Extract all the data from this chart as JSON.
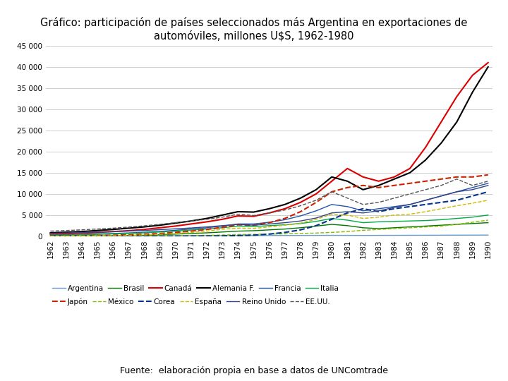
{
  "title": "Gráfico: participación de países seleccionados más Argentina en exportaciones de\nautomóviles, millones U$S, 1962-1980",
  "subtitle": "Fuente:  elaboración propia en base a datos de UNComtrade",
  "years": [
    1962,
    1963,
    1964,
    1965,
    1966,
    1967,
    1968,
    1969,
    1970,
    1971,
    1972,
    1973,
    1974,
    1975,
    1976,
    1977,
    1978,
    1979,
    1980,
    1981,
    1982,
    1983,
    1984,
    1985,
    1986,
    1987,
    1988,
    1989,
    1990
  ],
  "ylim": [
    0,
    45000
  ],
  "yticks": [
    0,
    5000,
    10000,
    15000,
    20000,
    25000,
    30000,
    35000,
    40000,
    45000
  ],
  "series": {
    "Argentina": {
      "color": "#6699CC",
      "linestyle": "-",
      "linewidth": 1.0,
      "values": [
        50,
        60,
        70,
        80,
        90,
        100,
        110,
        120,
        130,
        140,
        150,
        160,
        170,
        160,
        170,
        180,
        190,
        200,
        210,
        200,
        190,
        200,
        210,
        220,
        230,
        240,
        250,
        260,
        270
      ]
    },
    "Brasil": {
      "color": "#007700",
      "linestyle": "-",
      "linewidth": 1.0,
      "values": [
        20,
        30,
        40,
        70,
        100,
        150,
        220,
        350,
        500,
        650,
        800,
        1000,
        1200,
        1300,
        1500,
        1700,
        2000,
        2400,
        2800,
        2500,
        2000,
        1800,
        2000,
        2200,
        2400,
        2600,
        2800,
        3000,
        3200
      ]
    },
    "Canadá": {
      "color": "#DD0000",
      "linestyle": "-",
      "linewidth": 1.5,
      "values": [
        500,
        600,
        750,
        900,
        1100,
        1300,
        1600,
        2000,
        2400,
        2900,
        3400,
        4000,
        4800,
        4700,
        5500,
        6500,
        8000,
        10000,
        13000,
        16000,
        14000,
        13000,
        14000,
        16000,
        21000,
        27000,
        33000,
        38000,
        41000
      ]
    },
    "Alemania F.": {
      "color": "#000000",
      "linestyle": "-",
      "linewidth": 1.5,
      "values": [
        800,
        950,
        1100,
        1350,
        1600,
        1900,
        2200,
        2600,
        3100,
        3600,
        4200,
        5000,
        5800,
        5700,
        6500,
        7500,
        9000,
        11000,
        14000,
        13000,
        11000,
        12000,
        13500,
        15000,
        18000,
        22000,
        27000,
        34000,
        40000
      ]
    },
    "Francia": {
      "color": "#2255AA",
      "linestyle": "-",
      "linewidth": 1.0,
      "values": [
        300,
        370,
        450,
        550,
        650,
        780,
        950,
        1150,
        1400,
        1700,
        2000,
        2400,
        2900,
        2900,
        3300,
        3900,
        4800,
        6000,
        7500,
        7000,
        6000,
        6500,
        7000,
        7500,
        8500,
        9500,
        10500,
        11500,
        12500
      ]
    },
    "Italia": {
      "color": "#00AA44",
      "linestyle": "-",
      "linewidth": 1.0,
      "values": [
        250,
        300,
        370,
        450,
        550,
        650,
        800,
        1000,
        1200,
        1450,
        1700,
        2000,
        2400,
        2300,
        2500,
        2700,
        3000,
        3500,
        4200,
        3800,
        3200,
        3400,
        3500,
        3600,
        3700,
        3900,
        4200,
        4500,
        5000
      ]
    },
    "Japón": {
      "color": "#CC2200",
      "linestyle": "--",
      "linewidth": 1.5,
      "values": [
        60,
        80,
        110,
        160,
        230,
        320,
        450,
        650,
        900,
        1200,
        1600,
        2100,
        2700,
        2600,
        3200,
        4200,
        5800,
        8000,
        10500,
        11500,
        12000,
        11500,
        12000,
        12500,
        13000,
        13500,
        14000,
        14000,
        14500
      ]
    },
    "México": {
      "color": "#88BB00",
      "linestyle": "--",
      "linewidth": 1.0,
      "values": [
        5,
        7,
        10,
        15,
        22,
        32,
        48,
        70,
        100,
        140,
        200,
        280,
        400,
        430,
        500,
        560,
        650,
        750,
        900,
        1100,
        1400,
        1600,
        1800,
        2000,
        2200,
        2400,
        2800,
        3300,
        3800
      ]
    },
    "Corea": {
      "color": "#003388",
      "linestyle": "--",
      "linewidth": 1.5,
      "values": [
        0,
        0,
        0,
        0,
        0,
        0,
        0,
        0,
        10,
        20,
        40,
        80,
        150,
        250,
        500,
        900,
        1500,
        2500,
        4000,
        5500,
        6500,
        5800,
        6500,
        7000,
        7500,
        8000,
        8500,
        9500,
        10500
      ]
    },
    "España": {
      "color": "#CCBB00",
      "linestyle": "--",
      "linewidth": 1.0,
      "values": [
        20,
        35,
        55,
        90,
        140,
        210,
        300,
        430,
        620,
        880,
        1200,
        1650,
        1900,
        1850,
        2200,
        2600,
        3100,
        4000,
        5200,
        5000,
        4200,
        4500,
        5000,
        5200,
        5800,
        6500,
        7200,
        7800,
        8500
      ]
    },
    "Reino Unido": {
      "color": "#334488",
      "linestyle": "-",
      "linewidth": 1.0,
      "values": [
        700,
        780,
        870,
        980,
        1100,
        1220,
        1370,
        1550,
        1750,
        1950,
        2200,
        2500,
        2800,
        2600,
        2900,
        3200,
        3600,
        4300,
        5500,
        5800,
        5500,
        6000,
        6800,
        7500,
        8500,
        9500,
        10500,
        11000,
        12000
      ]
    },
    "EE.UU.": {
      "color": "#555555",
      "linestyle": "--",
      "linewidth": 1.0,
      "values": [
        1200,
        1350,
        1500,
        1700,
        1900,
        2150,
        2450,
        2800,
        3200,
        3600,
        4000,
        4500,
        5200,
        4900,
        5500,
        6200,
        7200,
        8500,
        10500,
        9000,
        7500,
        8000,
        9000,
        10000,
        11000,
        12000,
        13500,
        12000,
        13000
      ]
    }
  },
  "legend_order": [
    "Argentina",
    "Brasil",
    "Canadá",
    "Alemania F.",
    "Francia",
    "Italia",
    "Japón",
    "México",
    "Corea",
    "España",
    "Reino Unido",
    "EE.UU."
  ],
  "background_color": "#FFFFFF",
  "title_fontsize": 10.5,
  "tick_fontsize": 7.5,
  "legend_fontsize": 7.5
}
